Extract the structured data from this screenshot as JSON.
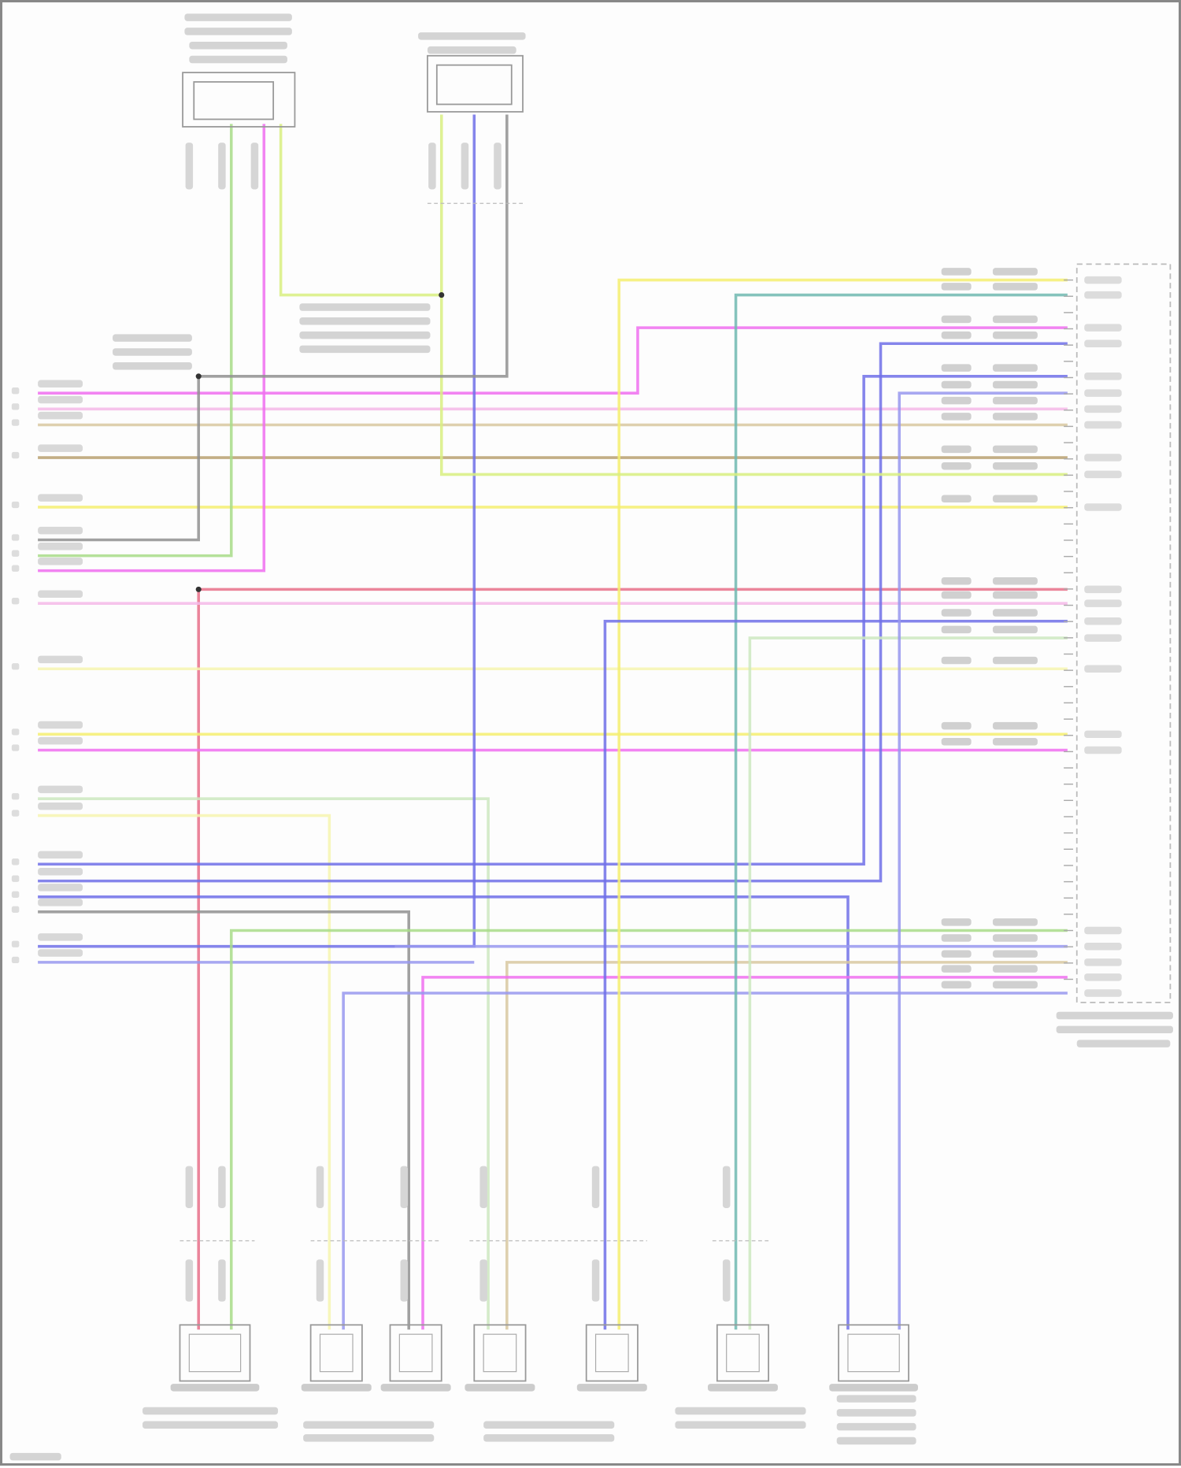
{
  "diagram": {
    "type": "wiring-diagram",
    "text_legible": false,
    "wire_colors": {
      "pink": "#f06ef0",
      "red_pink": "#e8708a",
      "light_pink": "#f5b8e8",
      "tan": "#d8c8a0",
      "brown": "#b8a070",
      "yellow": "#f4ee70",
      "light_yellow": "#f6f4b0",
      "yellow_green": "#d8ee80",
      "green": "#a8dc88",
      "light_green": "#cde8c0",
      "teal": "#70b8b0",
      "blue": "#7070e8",
      "light_blue": "#9898ee",
      "gray": "#909090"
    },
    "components": {
      "top": 2,
      "bottom": 7,
      "main_connector": 1
    }
  }
}
